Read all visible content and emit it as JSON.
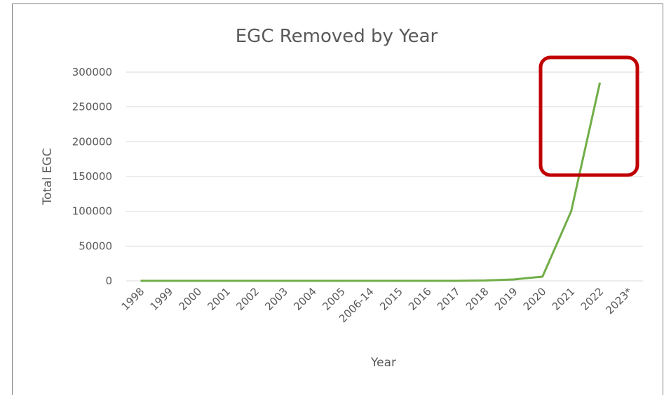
{
  "chart_data": {
    "type": "line",
    "title": "EGC Removed by Year",
    "xlabel": "Year",
    "ylabel": "Total EGC",
    "categories": [
      "1998",
      "1999",
      "2000",
      "2001",
      "2002",
      "2003",
      "2004",
      "2005",
      "2006-14",
      "2015",
      "2016",
      "2017",
      "2018",
      "2019",
      "2020",
      "2021",
      "2022",
      "2023*"
    ],
    "yticks": [
      "0",
      "50000",
      "100000",
      "150000",
      "200000",
      "250000",
      "300000"
    ],
    "ylim": [
      0,
      300000
    ],
    "grid": true,
    "series": [
      {
        "values": [
          0,
          0,
          0,
          0,
          0,
          0,
          0,
          0,
          0,
          0,
          0,
          0,
          500,
          2000,
          6000,
          100000,
          285000,
          null
        ]
      }
    ],
    "colors": {
      "line": "#70ad47",
      "grid": "#d9d9d9",
      "highlight": "#c00000"
    },
    "annotation": {
      "type": "highlight-box",
      "target_categories": [
        "2021",
        "2022"
      ]
    }
  }
}
